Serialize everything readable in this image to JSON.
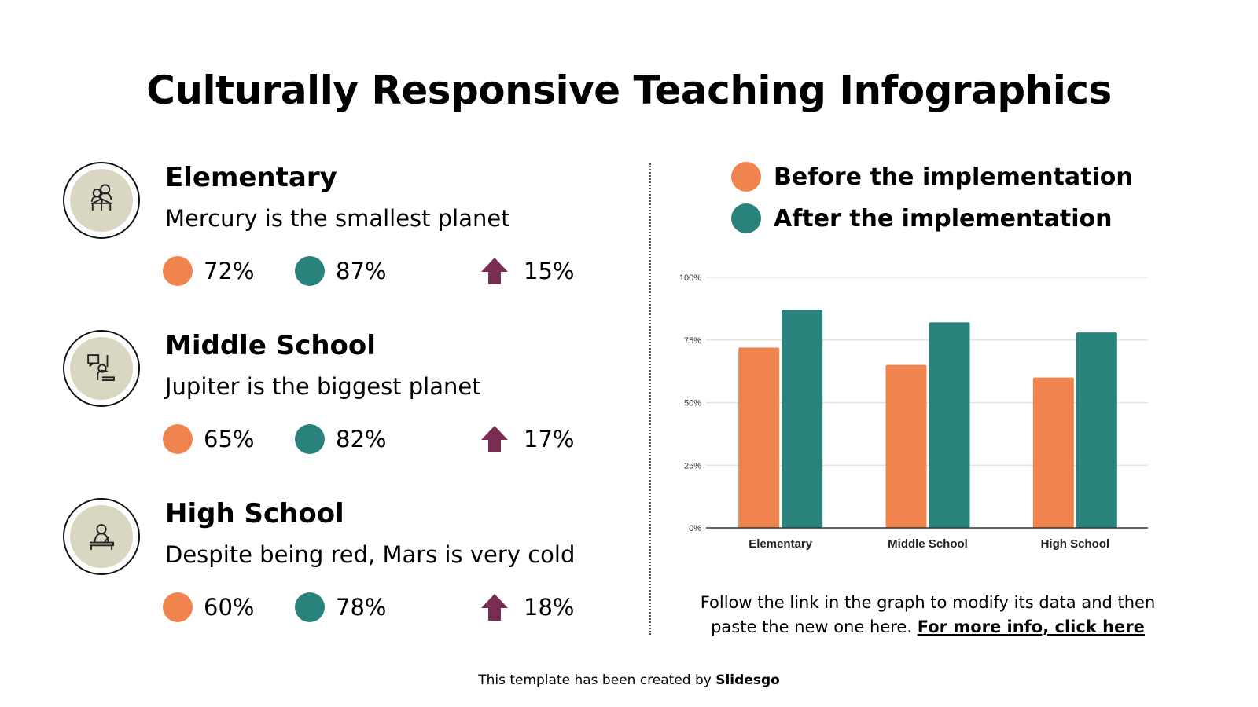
{
  "title": "Culturally Responsive Teaching Infographics",
  "colors": {
    "before": "#f0844f",
    "after": "#2a827c",
    "increase": "#7a2d52",
    "icon_bg": "#d9d7c1"
  },
  "rows": [
    {
      "icon": "reading-together-icon",
      "title": "Elementary",
      "desc": "Mercury is the smallest planet",
      "before": "72%",
      "after": "87%",
      "increase": "15%"
    },
    {
      "icon": "student-raising-hand-icon",
      "title": "Middle School",
      "desc": "Jupiter is the biggest planet",
      "before": "65%",
      "after": "82%",
      "increase": "17%"
    },
    {
      "icon": "student-writing-icon",
      "title": "High School",
      "desc": "Despite being red, Mars is very cold",
      "before": "60%",
      "after": "78%",
      "increase": "18%"
    }
  ],
  "legend": {
    "before": "Before the implementation",
    "after": "After the implementation"
  },
  "chart_data": {
    "type": "bar",
    "categories": [
      "Elementary",
      "Middle School",
      "High School"
    ],
    "series": [
      {
        "name": "Before the implementation",
        "values": [
          72,
          65,
          60
        ],
        "color": "#f0844f"
      },
      {
        "name": "After the implementation",
        "values": [
          87,
          82,
          78
        ],
        "color": "#2a827c"
      }
    ],
    "ylim": [
      0,
      100
    ],
    "yticks": [
      "0%",
      "25%",
      "50%",
      "75%",
      "100%"
    ],
    "grid": true,
    "legend_position": "top"
  },
  "note": {
    "text": "Follow the link in the graph to modify its data and then paste the new one here. ",
    "link": "For more info, click here"
  },
  "footer": {
    "text": "This template has been created by ",
    "brand": "Slidesgo"
  }
}
